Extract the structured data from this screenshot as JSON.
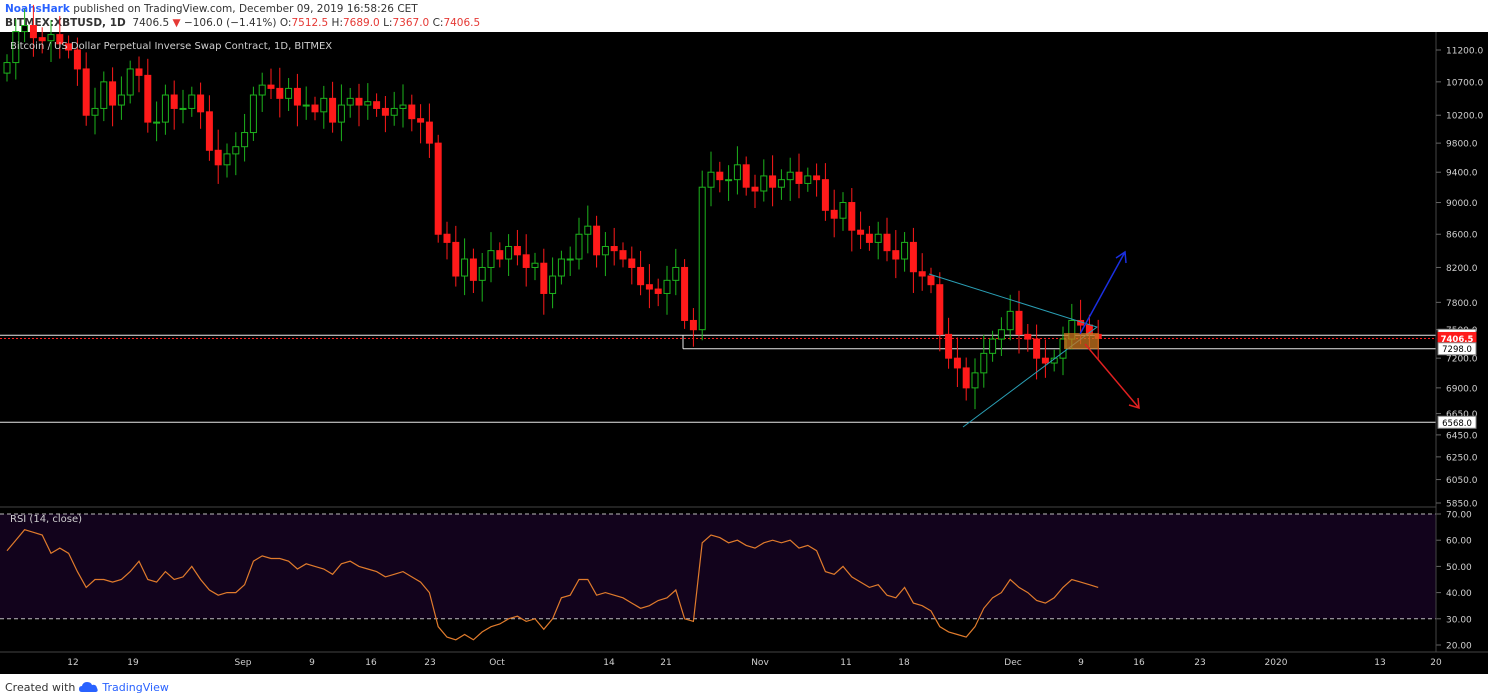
{
  "header": {
    "author": "NoahsHark",
    "published": "published on TradingView.com, December 09, 2019 16:58:26 CET",
    "symbol": "BITMEX:XBTUSD, 1D",
    "last": "7406.5",
    "change": "−106.0 (−1.41%)",
    "o_label": "O:",
    "o": "7512.5",
    "h_label": "H:",
    "h": "7689.0",
    "l_label": "L:",
    "l": "7367.0",
    "c_label": "C:",
    "c": "7406.5"
  },
  "footer": {
    "created": "Created with",
    "brand": "TradingView"
  },
  "colors": {
    "up": "#1db31d",
    "down": "#ff1a1a",
    "bg": "#000000",
    "rsi_bg": "#12031c",
    "rsi_line": "#e07b2c",
    "wedge": "#2a9fb5",
    "up_arrow": "#1a2fe0",
    "down_arrow": "#e02020",
    "zone": "#c9761f"
  },
  "chart_data": [
    {
      "type": "candlestick",
      "title": "Bitcoin / US Dollar Perpetual Inverse Swap Contract, 1D, BITMEX",
      "ylim": [
        5700,
        11500
      ],
      "y_ticks": [
        5850,
        6050,
        6250,
        6450,
        6650,
        6900,
        7200,
        7500,
        7800,
        8200,
        8600,
        9000,
        9400,
        9800,
        10200,
        10700,
        11200
      ],
      "x_ticks": [
        "12",
        "19",
        "Sep",
        "9",
        "16",
        "23",
        "Oct",
        "14",
        "21",
        "Nov",
        "11",
        "18",
        "Dec",
        "9",
        "16",
        "23",
        "2020",
        "13",
        "20"
      ],
      "price_labels": [
        {
          "value": "7440.0",
          "type": "horizontal-line"
        },
        {
          "value": "7406.5",
          "type": "last-price"
        },
        {
          "value": "7298.0",
          "type": "horizontal-line"
        },
        {
          "value": "6568.0",
          "type": "horizontal-line"
        }
      ],
      "closes": [
        11000,
        11500,
        11600,
        11400,
        11350,
        11450,
        11300,
        11200,
        10900,
        10200,
        10300,
        10700,
        10350,
        10500,
        10900,
        10800,
        10100,
        10100,
        10500,
        10300,
        10300,
        10500,
        10250,
        9700,
        9500,
        9650,
        9750,
        9950,
        10500,
        10650,
        10600,
        10450,
        10600,
        10350,
        10350,
        10250,
        10450,
        10100,
        10350,
        10450,
        10350,
        10400,
        10300,
        10200,
        10300,
        10350,
        10150,
        10100,
        9800,
        8600,
        8500,
        8100,
        8300,
        8050,
        8200,
        8400,
        8300,
        8450,
        8350,
        8200,
        8250,
        7900,
        8100,
        8300,
        8300,
        8600,
        8700,
        8350,
        8450,
        8400,
        8300,
        8200,
        8000,
        7950,
        7900,
        8050,
        8200,
        7600,
        7500,
        9200,
        9400,
        9300,
        9300,
        9500,
        9200,
        9150,
        9350,
        9200,
        9300,
        9400,
        9250,
        9350,
        9300,
        8900,
        8800,
        9000,
        8650,
        8600,
        8500,
        8600,
        8400,
        8300,
        8500,
        8150,
        8100,
        8000,
        7450,
        7200,
        7100,
        6900,
        7050,
        7250,
        7400,
        7500,
        7700,
        7450,
        7400,
        7200,
        7150,
        7200,
        7400,
        7600,
        7550,
        7450,
        7406.5
      ],
      "rsi": {
        "title": "RSI (14, close)",
        "ylim": [
          17,
          74
        ],
        "y_ticks": [
          20,
          30,
          40,
          50,
          60,
          70
        ],
        "bands": [
          30,
          70
        ],
        "values": [
          56,
          60,
          64,
          63,
          62,
          55,
          57,
          55,
          48,
          42,
          45,
          45,
          44,
          45,
          48,
          52,
          45,
          44,
          48,
          45,
          46,
          50,
          45,
          41,
          39,
          40,
          40,
          43,
          52,
          54,
          53,
          53,
          52,
          49,
          51,
          50,
          49,
          47,
          51,
          52,
          50,
          49,
          48,
          46,
          47,
          48,
          46,
          44,
          40,
          27,
          23,
          22,
          24,
          22,
          25,
          27,
          28,
          30,
          31,
          29,
          30,
          26,
          30,
          38,
          39,
          45,
          45,
          39,
          40,
          39,
          38,
          36,
          34,
          35,
          37,
          38,
          41,
          30,
          29,
          59,
          62,
          61,
          59,
          60,
          58,
          57,
          59,
          60,
          59,
          60,
          57,
          58,
          56,
          48,
          47,
          50,
          46,
          44,
          42,
          43,
          39,
          38,
          42,
          36,
          35,
          33,
          27,
          25,
          24,
          23,
          27,
          34,
          38,
          40,
          45,
          42,
          40,
          37,
          36,
          38,
          42,
          45,
          44,
          43,
          42
        ]
      }
    }
  ]
}
